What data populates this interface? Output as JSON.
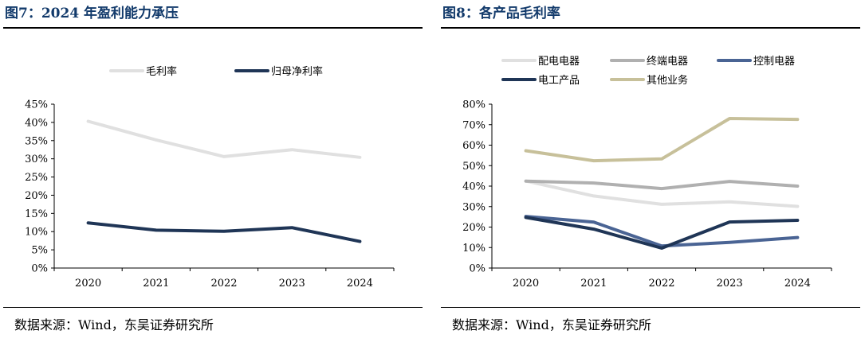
{
  "chart_data": [
    {
      "type": "line",
      "title": "图7：2024 年盈利能力承压",
      "categories": [
        "2020",
        "2021",
        "2022",
        "2023",
        "2024"
      ],
      "ylim": [
        0,
        45
      ],
      "yticks": [
        "0%",
        "5%",
        "10%",
        "15%",
        "20%",
        "25%",
        "30%",
        "35%",
        "40%",
        "45%"
      ],
      "grid": false,
      "legend": "top",
      "series": [
        {
          "name": "毛利率",
          "color": "#e0e0e0",
          "values": [
            40.3,
            35.2,
            30.6,
            32.5,
            30.4
          ]
        },
        {
          "name": "归母净利率",
          "color": "#1f3556",
          "values": [
            12.4,
            10.4,
            10.1,
            11.1,
            7.3
          ]
        }
      ],
      "source": "数据来源：Wind，东吴证券研究所"
    },
    {
      "type": "line",
      "title": "图8：各产品毛利率",
      "categories": [
        "2020",
        "2021",
        "2022",
        "2023",
        "2024"
      ],
      "ylim": [
        0,
        80
      ],
      "yticks": [
        "0%",
        "10%",
        "20%",
        "30%",
        "40%",
        "50%",
        "60%",
        "70%",
        "80%"
      ],
      "grid": false,
      "legend": "top",
      "series": [
        {
          "name": "配电电器",
          "color": "#e0e0e0",
          "values": [
            42.5,
            35.2,
            31.1,
            32.3,
            30.1
          ]
        },
        {
          "name": "终端电器",
          "color": "#b0b0b0",
          "values": [
            42.4,
            41.5,
            38.8,
            42.3,
            40.0
          ]
        },
        {
          "name": "控制电器",
          "color": "#4a6494",
          "values": [
            25.2,
            22.4,
            10.8,
            12.5,
            14.9
          ]
        },
        {
          "name": "电工产品",
          "color": "#1f3556",
          "values": [
            24.7,
            19.0,
            9.7,
            22.5,
            23.3
          ]
        },
        {
          "name": "其他业务",
          "color": "#c7c09a",
          "values": [
            57.3,
            52.4,
            53.3,
            73.0,
            72.6
          ]
        }
      ],
      "source": "数据来源：Wind，东吴证券研究所"
    }
  ]
}
